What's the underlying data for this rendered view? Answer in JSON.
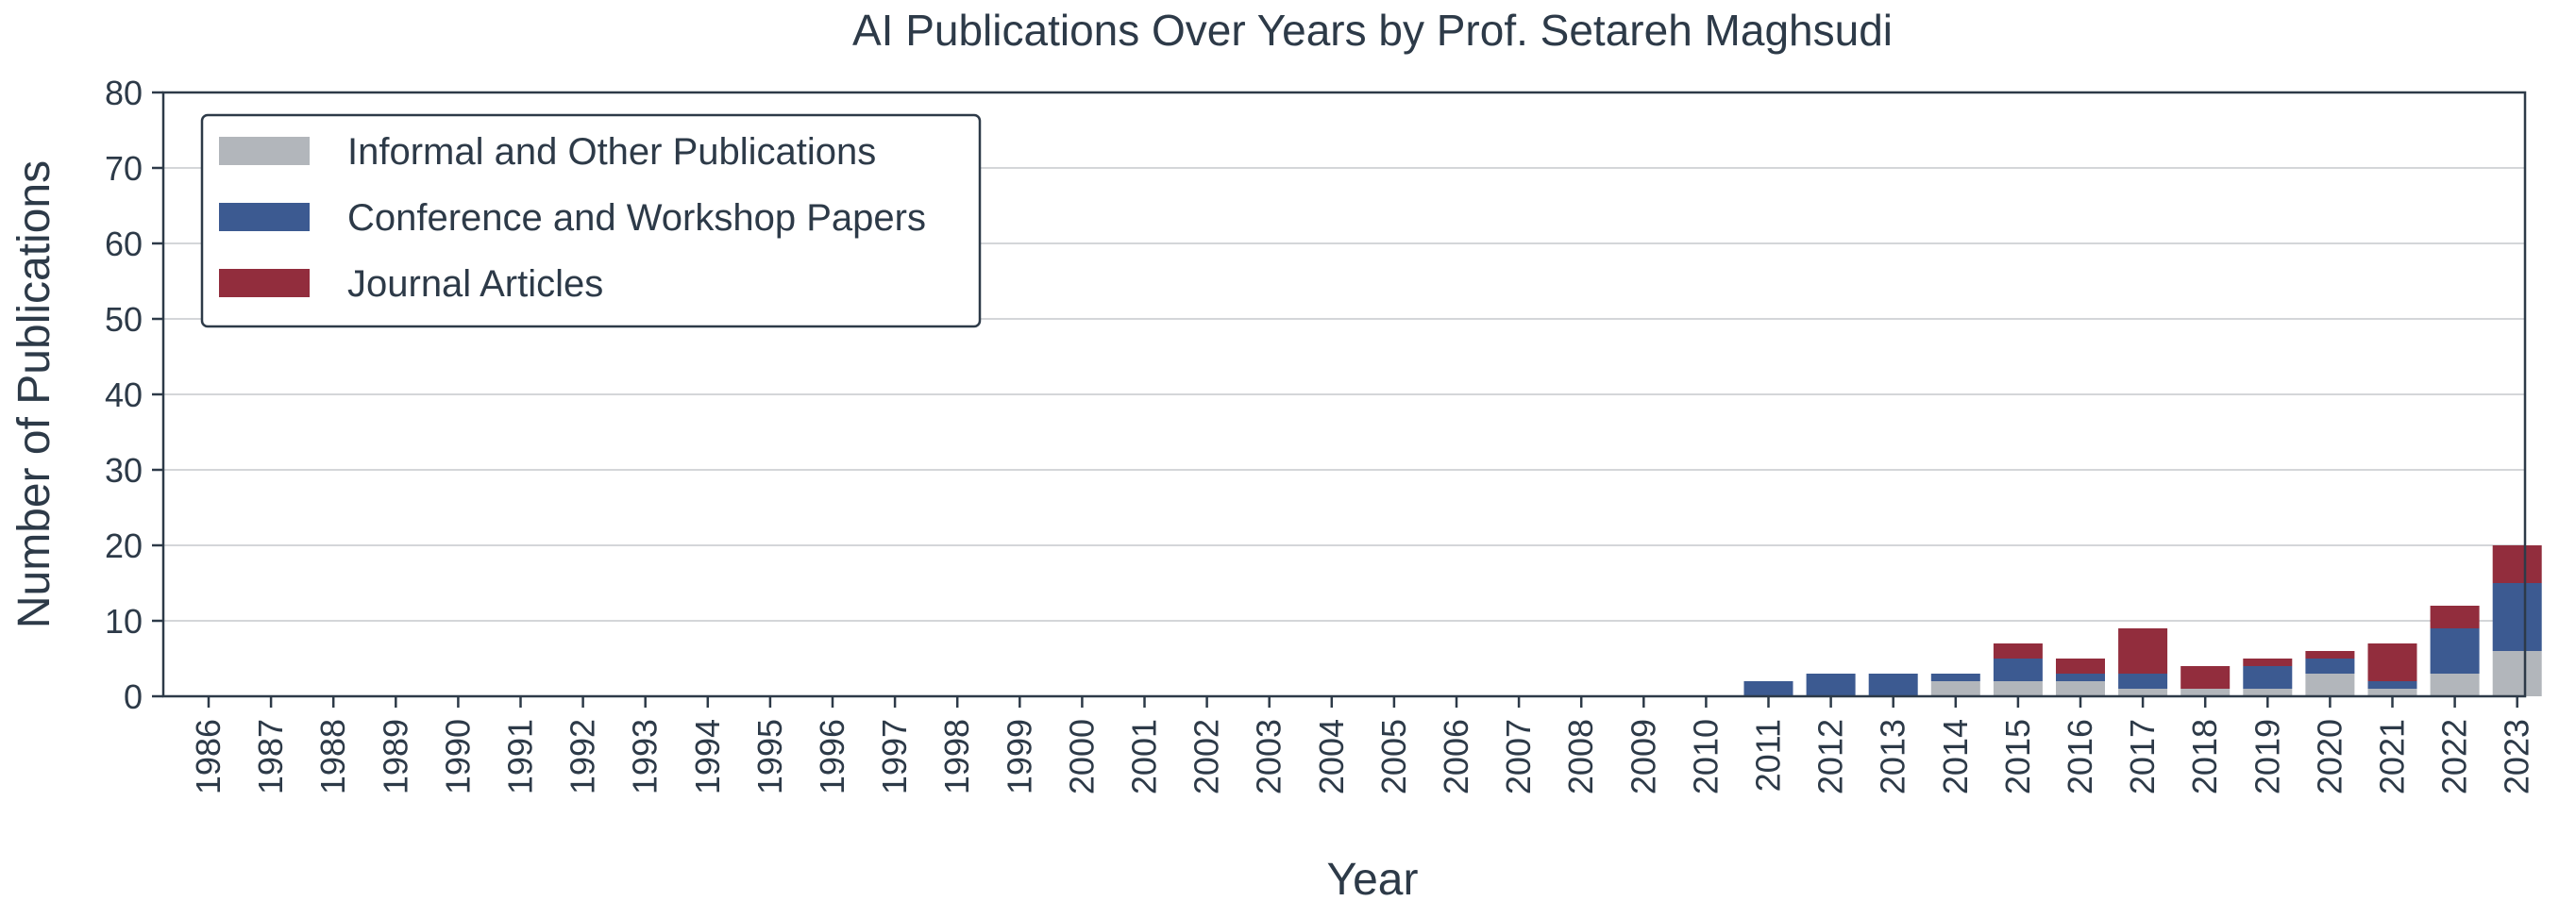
{
  "chart_data": {
    "type": "bar",
    "stacked": true,
    "title": "AI Publications Over Years by Prof. Setareh Maghsudi",
    "xlabel": "Year",
    "ylabel": "Number of Publications",
    "ylim": [
      0,
      80
    ],
    "yticks": [
      "0",
      "10",
      "20",
      "30",
      "40",
      "50",
      "60",
      "70",
      "80"
    ],
    "grid": "horizontal",
    "legend_position": "top-left",
    "categories": [
      "1986",
      "1987",
      "1988",
      "1989",
      "1990",
      "1991",
      "1992",
      "1993",
      "1994",
      "1995",
      "1996",
      "1997",
      "1998",
      "1999",
      "2000",
      "2001",
      "2002",
      "2003",
      "2004",
      "2005",
      "2006",
      "2007",
      "2008",
      "2009",
      "2010",
      "2011",
      "2012",
      "2013",
      "2014",
      "2015",
      "2016",
      "2017",
      "2018",
      "2019",
      "2020",
      "2021",
      "2022",
      "2023"
    ],
    "series": [
      {
        "name": "Informal and Other Publications",
        "color": "#b2b6bb",
        "values": [
          0,
          0,
          0,
          0,
          0,
          0,
          0,
          0,
          0,
          0,
          0,
          0,
          0,
          0,
          0,
          0,
          0,
          0,
          0,
          0,
          0,
          0,
          0,
          0,
          0,
          0,
          0,
          0,
          2,
          2,
          2,
          1,
          1,
          1,
          3,
          1,
          3,
          6
        ]
      },
      {
        "name": "Conference and Workshop Papers",
        "color": "#3c5a91",
        "values": [
          0,
          0,
          0,
          0,
          0,
          0,
          0,
          0,
          0,
          0,
          0,
          0,
          0,
          0,
          0,
          0,
          0,
          0,
          0,
          0,
          0,
          0,
          0,
          0,
          0,
          2,
          3,
          3,
          1,
          3,
          1,
          2,
          0,
          3,
          2,
          1,
          6,
          9
        ]
      },
      {
        "name": "Journal Articles",
        "color": "#922d3d",
        "values": [
          0,
          0,
          0,
          0,
          0,
          0,
          0,
          0,
          0,
          0,
          0,
          0,
          0,
          0,
          0,
          0,
          0,
          0,
          0,
          0,
          0,
          0,
          0,
          0,
          0,
          0,
          0,
          0,
          0,
          2,
          2,
          6,
          3,
          1,
          1,
          5,
          3,
          5
        ]
      }
    ]
  }
}
